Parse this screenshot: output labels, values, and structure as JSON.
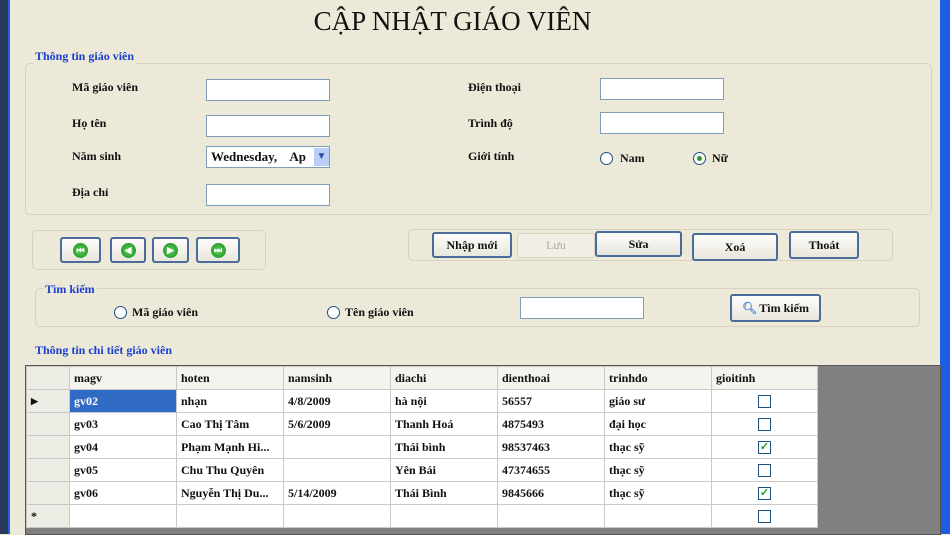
{
  "title": "CẬP NHẬT GIÁO VIÊN",
  "info": {
    "label": "Thông tin giáo viên",
    "ma_label": "Mã giáo viên",
    "hoten_label": "Họ tên",
    "namsinh_label": "Năm sinh",
    "namsinh_value": "Wednesday,    Ap",
    "diachi_label": "Địa chỉ",
    "dienthoai_label": "Điện thoại",
    "trinhdo_label": "Trình độ",
    "gioitinh_label": "Giới tính",
    "nam": "Nam",
    "nu": "Nữ",
    "selected_gender": "Nữ"
  },
  "actions": {
    "new": "Nhập mới",
    "save": "Lưu",
    "edit": "Sửa",
    "delete": "Xoá",
    "exit": "Thoát"
  },
  "search": {
    "label": "Tìm kiếm",
    "by_id": "Mã giáo viên",
    "by_name": "Tên giáo viên",
    "button": "Tìm kiếm",
    "value": ""
  },
  "grid": {
    "label": "Thông tin chi tiết giáo viên",
    "columns": [
      "magv",
      "hoten",
      "namsinh",
      "diachi",
      "dienthoai",
      "trinhdo",
      "gioitinh"
    ],
    "rows": [
      [
        "gv02",
        "nhạn",
        "4/8/2009",
        "hà nội",
        "56557",
        "giáo sư",
        false
      ],
      [
        "gv03",
        "Cao Thị Tâm",
        "5/6/2009",
        "Thanh Hoá",
        "4875493",
        "đại học",
        false
      ],
      [
        "gv04",
        "Phạm Mạnh Hi...",
        "",
        "Thái bình",
        "98537463",
        "thạc sỹ",
        true
      ],
      [
        "gv05",
        "Chu Thu Quyên",
        "",
        "Yên Bái",
        "47374655",
        "thạc sỹ",
        false
      ],
      [
        "gv06",
        "Nguyễn Thị Du...",
        "5/14/2009",
        "Thái Bình",
        "9845666",
        "thạc sỹ",
        true
      ]
    ]
  }
}
